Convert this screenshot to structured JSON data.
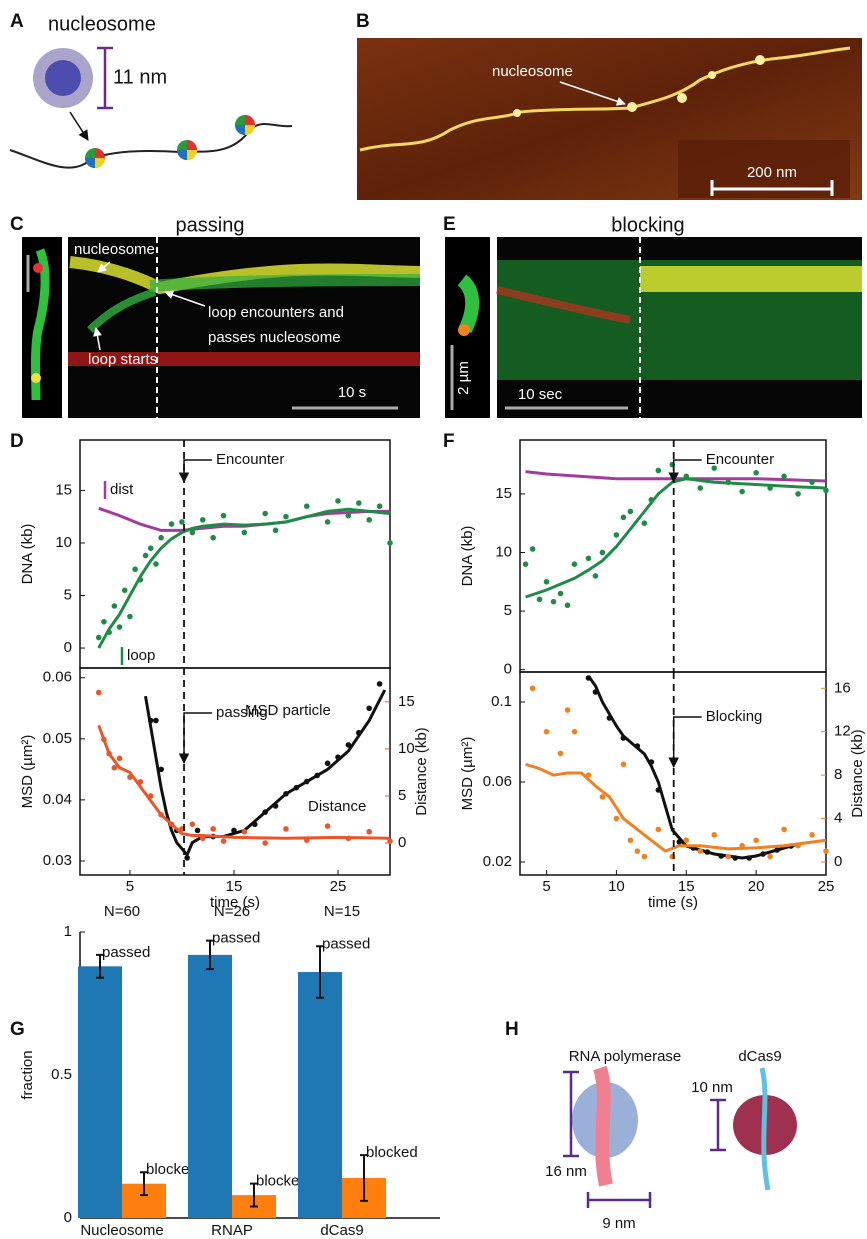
{
  "panel_letters": [
    "A",
    "B",
    "C",
    "D",
    "E",
    "F",
    "G",
    "H"
  ],
  "panel_a": {
    "title": "nucleosome",
    "scale": "11 nm"
  },
  "panel_b": {
    "label": "nucleosome",
    "scale": "200 nm"
  },
  "panel_c": {
    "title": "passing",
    "labels": [
      "nucleosome",
      "loop encounters and",
      "passes nucleosome",
      "loop starts"
    ],
    "scale": "10 s"
  },
  "panel_e": {
    "title": "blocking",
    "scale_y": "2 µm",
    "scale_x": "10 sec"
  },
  "panel_h": {
    "labels": [
      "RNA polymerase",
      "dCas9"
    ],
    "scales": [
      "16 nm",
      "9 nm",
      "10 nm"
    ]
  },
  "chart_data": [
    {
      "type": "line",
      "ylabel": "DNA (kb)",
      "xlim": [
        0.2,
        30
      ],
      "ylim": [
        -1.9,
        19.8
      ],
      "yticks": [
        0,
        5,
        10,
        15
      ],
      "event": {
        "x": 10.2,
        "label": "Encounter"
      },
      "series": [
        {
          "name": "dist",
          "color": "#a03ca0",
          "mode": "lines",
          "x": [
            2,
            4,
            6,
            8,
            10,
            12,
            14,
            16,
            18,
            20,
            22,
            24,
            26,
            28,
            30
          ],
          "values": [
            13.3,
            12.6,
            11.8,
            11.2,
            11.2,
            11.4,
            11.6,
            11.6,
            11.8,
            12.0,
            12.5,
            12.8,
            12.9,
            13.0,
            13.0
          ]
        },
        {
          "name": "loop",
          "color": "#1e8c46",
          "mode": "lines",
          "x": [
            2,
            3,
            4,
            5,
            6,
            7,
            8,
            9,
            10,
            11,
            12,
            14,
            16,
            18,
            20,
            22,
            24,
            26,
            28,
            30
          ],
          "values": [
            0,
            1.8,
            3.2,
            5,
            6.8,
            8.3,
            9.5,
            10.4,
            11,
            11.4,
            11.6,
            11.8,
            11.7,
            11.8,
            12,
            12.5,
            13,
            13.2,
            13,
            12.8
          ]
        },
        {
          "color": "#1e8c46",
          "mode": "markers",
          "x": [
            2,
            2.5,
            3,
            3.5,
            4,
            4.5,
            5,
            5.5,
            6,
            6.5,
            7,
            7.5,
            8,
            9,
            10,
            11,
            12,
            13,
            14,
            16,
            18,
            19,
            20,
            22,
            24,
            25,
            26,
            27,
            28,
            29,
            30
          ],
          "values": [
            1,
            2.5,
            1.5,
            4,
            2,
            5.5,
            3,
            7.5,
            6.5,
            8.8,
            9.5,
            8,
            10.5,
            11.8,
            12,
            11,
            12.2,
            10.5,
            12.6,
            11,
            12.8,
            11.2,
            12.5,
            13.5,
            12,
            14,
            12.6,
            13.8,
            12.2,
            13.5,
            10
          ]
        }
      ]
    },
    {
      "type": "line",
      "ylabel": "MSD (µm²)",
      "xlabel": "time (s)",
      "xlim": [
        0.2,
        30
      ],
      "ylim": [
        0.0277,
        0.0616
      ],
      "yticks": [
        0.03,
        0.04,
        0.05,
        0.06
      ],
      "xticks": [
        5,
        15,
        25
      ],
      "y2label": "Distance (kb)",
      "y2color": "#e8562a",
      "y2lim": [
        -3.4,
        18.6
      ],
      "y2ticks": [
        0,
        5,
        10,
        15
      ],
      "event": {
        "x": 10.2,
        "label": "passing"
      },
      "series": [
        {
          "name": "MSD particle",
          "color": "#111111",
          "mode": "lines",
          "x": [
            6.5,
            7,
            7.5,
            8,
            8.5,
            9,
            9.5,
            10,
            10.5,
            11,
            12,
            14,
            16,
            18,
            20,
            22,
            24,
            26,
            28,
            29.5
          ],
          "values": [
            0.057,
            0.052,
            0.047,
            0.042,
            0.038,
            0.035,
            0.033,
            0.032,
            0.031,
            0.033,
            0.034,
            0.034,
            0.035,
            0.038,
            0.041,
            0.043,
            0.045,
            0.048,
            0.053,
            0.058
          ]
        },
        {
          "color": "#111111",
          "mode": "markers",
          "x": [
            7,
            7.5,
            8,
            9.5,
            10.5,
            11.5,
            13,
            15,
            17,
            18,
            19,
            20,
            21,
            22,
            23,
            24,
            25,
            26,
            27,
            28,
            29
          ],
          "values": [
            0.053,
            0.053,
            0.045,
            0.035,
            0.0305,
            0.035,
            0.034,
            0.035,
            0.036,
            0.038,
            0.039,
            0.041,
            0.042,
            0.043,
            0.044,
            0.046,
            0.047,
            0.049,
            0.051,
            0.055,
            0.059
          ]
        },
        {
          "name": "Distance",
          "color": "#e8562a",
          "mode": "lines",
          "axis": "y2",
          "x": [
            2,
            3,
            4,
            5,
            6,
            7,
            8,
            9,
            10,
            11,
            12,
            15,
            20,
            25,
            30
          ],
          "values": [
            12.5,
            9.5,
            8,
            7.5,
            6,
            4.5,
            3,
            2,
            1,
            0.8,
            0.8,
            0.6,
            0.5,
            0.6,
            0.5
          ]
        },
        {
          "color": "#e8562a",
          "mode": "markers",
          "axis": "y2",
          "x": [
            2,
            2.5,
            3,
            3.5,
            4,
            5,
            6,
            7,
            8,
            9,
            10,
            11,
            12,
            13,
            14,
            16,
            18,
            20,
            22,
            24,
            26,
            28,
            30
          ],
          "values": [
            16,
            11,
            9.5,
            8,
            9,
            7,
            6.5,
            5,
            3,
            2,
            1.5,
            2,
            0.5,
            1.5,
            0.2,
            1.2,
            0,
            1.5,
            0.3,
            1.8,
            0.5,
            1.2,
            0.2
          ]
        }
      ]
    },
    {
      "type": "line",
      "ylabel": "DNA (kb)",
      "xlim": [
        3.1,
        25
      ],
      "ylim": [
        -0.2,
        19.6
      ],
      "yticks": [
        0,
        5,
        10,
        15
      ],
      "event": {
        "x": 14.1,
        "label": "Encounter"
      },
      "series": [
        {
          "color": "#a03ca0",
          "mode": "lines",
          "x": [
            3.5,
            5,
            10,
            15,
            20,
            25
          ],
          "values": [
            16.9,
            16.7,
            16.3,
            16.3,
            16.3,
            16.1
          ]
        },
        {
          "color": "#1e8c46",
          "mode": "lines",
          "x": [
            3.5,
            5,
            6,
            7,
            8,
            9,
            10,
            11,
            12,
            13,
            14,
            15,
            17,
            20,
            23,
            25
          ],
          "values": [
            6.2,
            6.8,
            7.3,
            7.8,
            8.5,
            9.3,
            10.5,
            12,
            13.5,
            15,
            16,
            16.3,
            16,
            15.8,
            15.6,
            15.5
          ]
        },
        {
          "color": "#1e8c46",
          "mode": "markers",
          "x": [
            3.5,
            4,
            4.5,
            5,
            5.5,
            6,
            6.5,
            7,
            8,
            8.5,
            9,
            10,
            10.5,
            11,
            12,
            12.5,
            13,
            14,
            15,
            16,
            17,
            18,
            19,
            20,
            21,
            22,
            23,
            24,
            25
          ],
          "values": [
            9,
            10.3,
            6,
            7.5,
            5.8,
            6.5,
            5.5,
            9,
            9.5,
            8,
            10,
            11.5,
            13,
            13.5,
            12.5,
            14.5,
            17,
            17.5,
            16.5,
            15.5,
            17.2,
            16,
            15.2,
            16.8,
            15.5,
            16.5,
            15,
            16,
            15.3
          ]
        }
      ]
    },
    {
      "type": "line",
      "ylabel": "MSD (µm²)",
      "xlabel": "time (s)",
      "xlim": [
        3.1,
        25
      ],
      "ylim": [
        0.0135,
        0.115
      ],
      "yticks": [
        0.02,
        0.06,
        0.1
      ],
      "xticks": [
        5,
        10,
        15,
        20,
        25
      ],
      "y2label": "Distance (kb)",
      "y2color": "#f08020",
      "y2lim": [
        -1.2,
        17.5
      ],
      "y2ticks": [
        0,
        4,
        8,
        12,
        16
      ],
      "event": {
        "x": 14.1,
        "label": "Blocking"
      },
      "series": [
        {
          "color": "#111111",
          "mode": "lines",
          "x": [
            8,
            8.5,
            9,
            9.5,
            10,
            10.5,
            11,
            11.5,
            12,
            12.5,
            13,
            14,
            15,
            16,
            17,
            18,
            19,
            20,
            21,
            22,
            23
          ],
          "values": [
            0.113,
            0.108,
            0.1,
            0.094,
            0.088,
            0.083,
            0.08,
            0.077,
            0.074,
            0.068,
            0.06,
            0.036,
            0.028,
            0.026,
            0.024,
            0.023,
            0.022,
            0.023,
            0.025,
            0.027,
            0.029
          ]
        },
        {
          "color": "#111111",
          "mode": "markers",
          "x": [
            8,
            8.5,
            9.5,
            10.5,
            11.5,
            12.5,
            13,
            14.5,
            15.5,
            16.5,
            17.5,
            18.5,
            19.5,
            20.5,
            21.5,
            22.5
          ],
          "values": [
            0.112,
            0.105,
            0.092,
            0.082,
            0.078,
            0.07,
            0.056,
            0.03,
            0.027,
            0.025,
            0.023,
            0.022,
            0.022,
            0.024,
            0.026,
            0.028
          ]
        },
        {
          "color": "#f08020",
          "mode": "lines",
          "axis": "y2",
          "x": [
            3.5,
            4.5,
            5.5,
            6.5,
            7.5,
            8.5,
            9.5,
            10.5,
            11.5,
            12.5,
            13.5,
            14.5,
            16,
            18,
            20,
            22,
            25
          ],
          "values": [
            9,
            8.6,
            8,
            8.2,
            8.2,
            7,
            6,
            4,
            3,
            2,
            1,
            1.5,
            1.5,
            1.2,
            1.3,
            1.5,
            2
          ]
        },
        {
          "color": "#f08020",
          "mode": "markers",
          "axis": "y2",
          "x": [
            4,
            5,
            6,
            6.5,
            7,
            8,
            9,
            10,
            10.5,
            11,
            11.5,
            12,
            13,
            14,
            15,
            16,
            17,
            18,
            19,
            20,
            21,
            22,
            23,
            24,
            25
          ],
          "values": [
            16,
            12,
            10,
            14,
            12,
            8,
            6,
            4,
            9,
            2,
            1,
            0.5,
            3,
            0.5,
            2,
            1,
            2.5,
            0.5,
            1.5,
            2,
            0.5,
            3,
            1.5,
            2.5,
            1
          ]
        }
      ]
    },
    {
      "type": "bar",
      "ylabel": "fraction",
      "categories": [
        "Nucleosome",
        "RNAP",
        "dCas9"
      ],
      "sample_sizes": [
        "N=60",
        "N=26",
        "N=15"
      ],
      "ylim": [
        0,
        1
      ],
      "yticks": [
        0,
        0.5,
        1
      ],
      "series": [
        {
          "name": "passed",
          "color": "#1f77b4",
          "values": [
            0.88,
            0.92,
            0.86
          ],
          "errors": [
            0.04,
            0.05,
            0.09
          ]
        },
        {
          "name": "blocked",
          "color": "#ff7f0e",
          "values": [
            0.12,
            0.08,
            0.14
          ],
          "errors": [
            0.04,
            0.04,
            0.08
          ]
        }
      ]
    }
  ]
}
